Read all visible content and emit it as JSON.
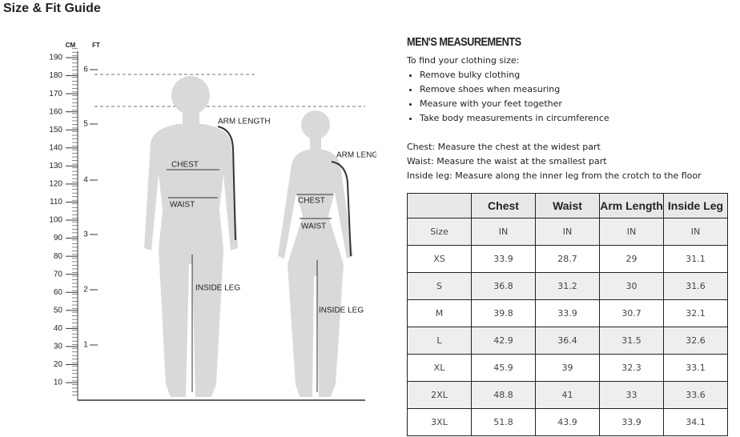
{
  "header": {
    "title": "Size & Fit Guide"
  },
  "figure": {
    "cm_label": "CM",
    "ft_label": "FT",
    "cm_ticks": [
      190,
      180,
      170,
      160,
      150,
      140,
      130,
      120,
      110,
      100,
      90,
      80,
      70,
      60,
      50,
      40,
      30,
      20,
      10
    ],
    "ft_ticks": [
      6,
      5,
      4,
      3,
      2,
      1
    ],
    "man": {
      "arm": "ARM LENGTH",
      "chest": "CHEST",
      "waist": "WAIST",
      "leg": "INSIDE LEG"
    },
    "woman": {
      "arm": "ARM LENGTH",
      "chest": "CHEST",
      "waist": "WAIST",
      "leg": "INSIDE LEG"
    }
  },
  "info": {
    "title": "MEN'S MEASUREMENTS",
    "intro": "To find your clothing size:",
    "bullets": [
      "Remove bulky clothing",
      "Remove shoes when measuring",
      "Measure with your feet together",
      "Take body measurements in circumference"
    ],
    "definitions": [
      "Chest: Measure the chest at the widest part",
      "Waist: Measure the waist at the smallest part",
      "Inside leg: Measure along the inner leg from the crotch to the floor"
    ]
  },
  "table": {
    "columns": [
      "Chest",
      "Waist",
      "Arm Length",
      "Inside Leg"
    ],
    "unit_row": [
      "Size",
      "IN",
      "IN",
      "IN",
      "IN"
    ],
    "rows": [
      [
        "XS",
        "33.9",
        "28.7",
        "29",
        "31.1"
      ],
      [
        "S",
        "36.8",
        "31.2",
        "30",
        "31.6"
      ],
      [
        "M",
        "39.8",
        "33.9",
        "30.7",
        "32.1"
      ],
      [
        "L",
        "42.9",
        "36.4",
        "31.5",
        "32.6"
      ],
      [
        "XL",
        "45.9",
        "39",
        "32.3",
        "33.1"
      ],
      [
        "2XL",
        "48.8",
        "41",
        "33",
        "33.6"
      ],
      [
        "3XL",
        "51.8",
        "43.9",
        "33.9",
        "34.1"
      ]
    ]
  }
}
